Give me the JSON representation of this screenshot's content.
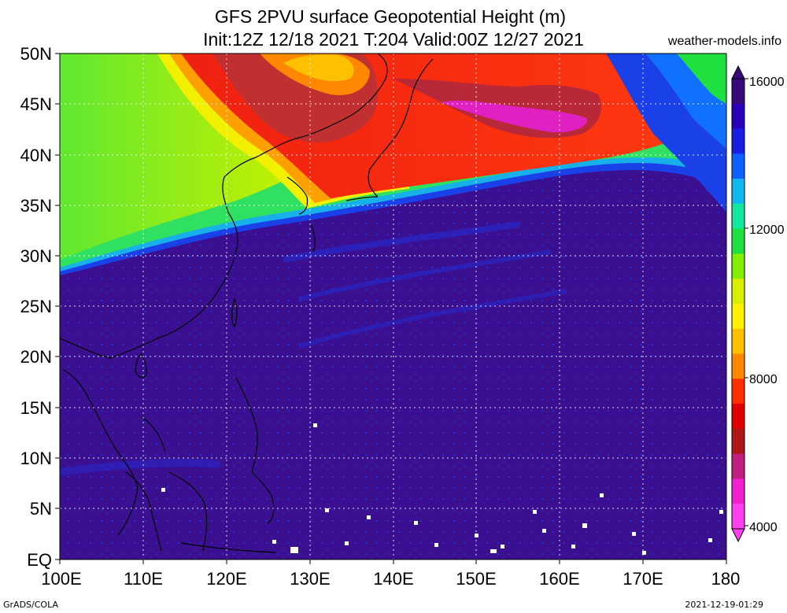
{
  "title_line1": "GFS 2PVU surface Geopotential Height (m)",
  "title_line2": "Init:12Z 12/18 2021 T:204 Valid:00Z 12/27 2021",
  "site": "weather-models.info",
  "footer_left": "GrADS/COLA",
  "footer_right": "2021-12-19-01:29",
  "lat_labels": [
    "50N",
    "45N",
    "40N",
    "35N",
    "30N",
    "25N",
    "20N",
    "15N",
    "10N",
    "5N",
    "EQ"
  ],
  "lon_labels": [
    "100E",
    "110E",
    "120E",
    "130E",
    "140E",
    "150E",
    "160E",
    "170E",
    "180"
  ],
  "colorbar_labels": [
    "16000",
    "12000",
    "8000",
    "4000"
  ],
  "colorbar_colors": [
    "#3a0a7a",
    "#2a00b8",
    "#1a1ee0",
    "#1060ff",
    "#10b8f0",
    "#10e8a0",
    "#20e040",
    "#80f000",
    "#d8f000",
    "#fff000",
    "#ffc000",
    "#ff8800",
    "#ff3000",
    "#e00000",
    "#b01818",
    "#c02080",
    "#f020d0",
    "#ff40f0"
  ],
  "colors": {
    "purple_low": "#3a1090",
    "blue": "#1a3ef0",
    "green": "#40e040",
    "yellow": "#f0f000",
    "orange": "#ff9000",
    "red": "#f02010",
    "darkred": "#c02828",
    "magenta": "#e020c0"
  }
}
